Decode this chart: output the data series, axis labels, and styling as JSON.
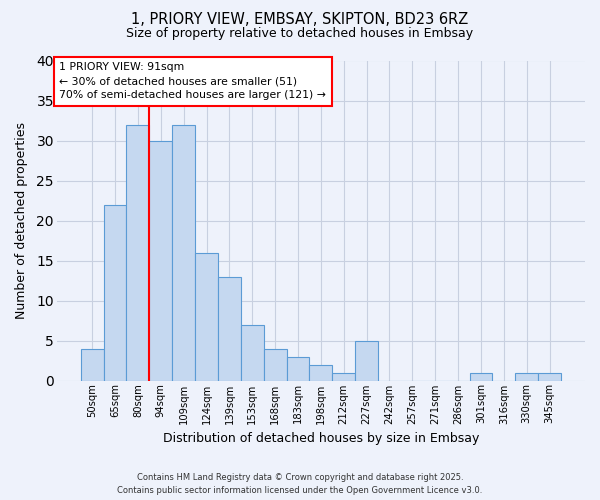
{
  "title": "1, PRIORY VIEW, EMBSAY, SKIPTON, BD23 6RZ",
  "subtitle": "Size of property relative to detached houses in Embsay",
  "xlabel": "Distribution of detached houses by size in Embsay",
  "ylabel": "Number of detached properties",
  "bar_labels": [
    "50sqm",
    "65sqm",
    "80sqm",
    "94sqm",
    "109sqm",
    "124sqm",
    "139sqm",
    "153sqm",
    "168sqm",
    "183sqm",
    "198sqm",
    "212sqm",
    "227sqm",
    "242sqm",
    "257sqm",
    "271sqm",
    "286sqm",
    "301sqm",
    "316sqm",
    "330sqm",
    "345sqm"
  ],
  "bar_values": [
    4,
    22,
    32,
    30,
    32,
    16,
    13,
    7,
    4,
    3,
    2,
    1,
    5,
    0,
    0,
    0,
    0,
    1,
    0,
    1,
    1
  ],
  "bar_color": "#c5d8f0",
  "bar_edgecolor": "#5b9bd5",
  "bar_width": 1.0,
  "vline_x_index": 2.5,
  "vline_color": "red",
  "vline_linewidth": 1.5,
  "ylim": [
    0,
    40
  ],
  "yticks": [
    0,
    5,
    10,
    15,
    20,
    25,
    30,
    35,
    40
  ],
  "annotation_title": "1 PRIORY VIEW: 91sqm",
  "annotation_line1": "← 30% of detached houses are smaller (51)",
  "annotation_line2": "70% of semi-detached houses are larger (121) →",
  "background_color": "#eef2fb",
  "grid_color": "#c8d0e0",
  "footer_line1": "Contains HM Land Registry data © Crown copyright and database right 2025.",
  "footer_line2": "Contains public sector information licensed under the Open Government Licence v3.0."
}
